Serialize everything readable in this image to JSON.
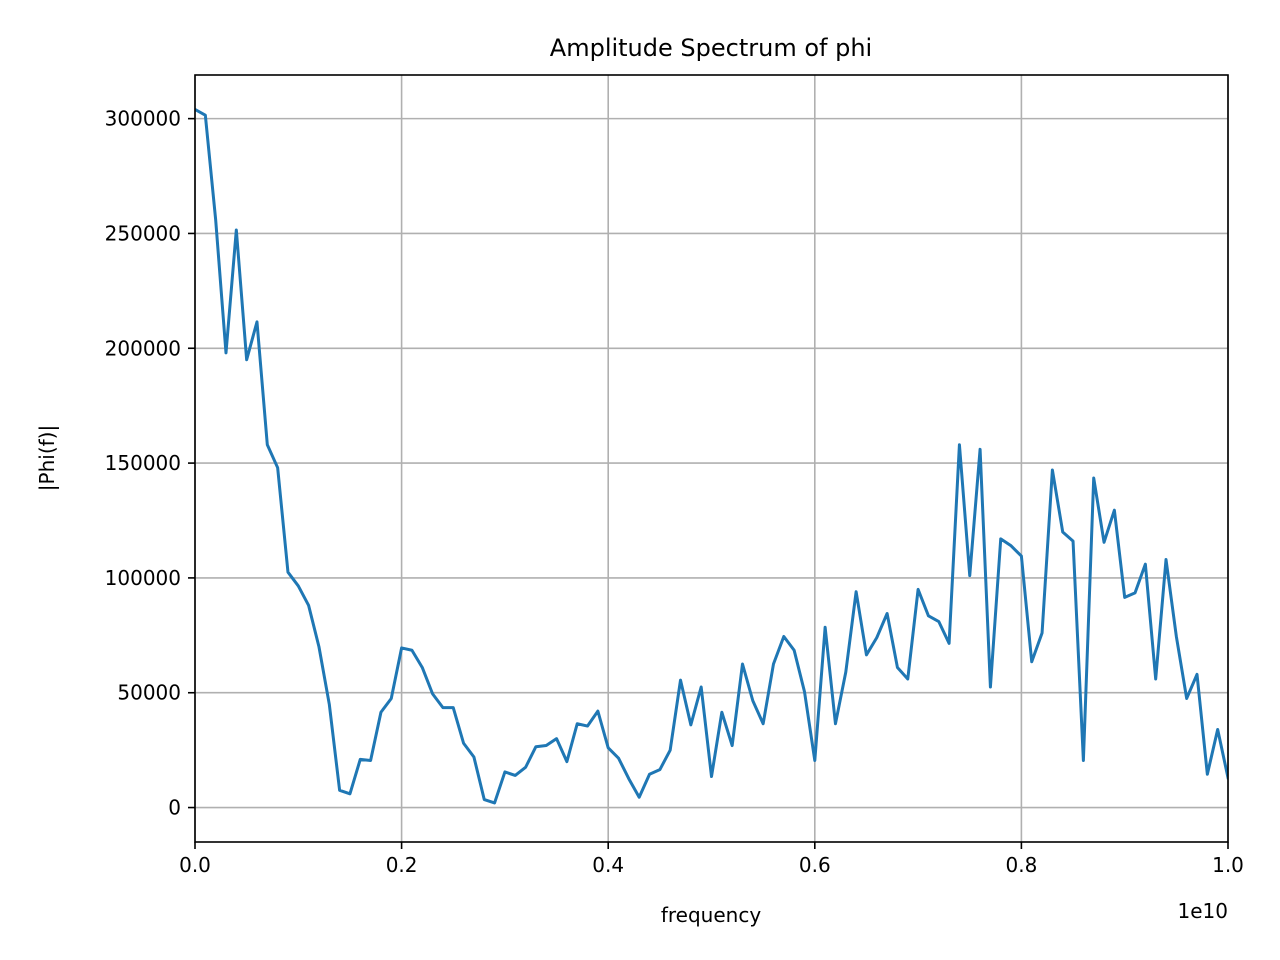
{
  "chart_data": {
    "type": "line",
    "title": "Amplitude Spectrum of phi",
    "xlabel": "frequency",
    "ylabel": "|Phi(f)|",
    "x_offset_text": "1e10",
    "xlim": [
      0.0,
      1.0
    ],
    "ylim": [
      -15000,
      319000
    ],
    "grid": true,
    "x_ticks": [
      0.0,
      0.2,
      0.4,
      0.6,
      0.8,
      1.0
    ],
    "x_tick_labels": [
      "0.0",
      "0.2",
      "0.4",
      "0.6",
      "0.8",
      "1.0"
    ],
    "y_ticks": [
      0,
      50000,
      100000,
      150000,
      200000,
      250000,
      300000
    ],
    "y_tick_labels": [
      "0",
      "50000",
      "100000",
      "150000",
      "200000",
      "250000",
      "300000"
    ],
    "series": [
      {
        "color": "#1f77b4",
        "x": [
          0.0,
          0.01,
          0.02,
          0.03,
          0.04,
          0.05,
          0.06,
          0.07,
          0.08,
          0.09,
          0.1,
          0.11,
          0.12,
          0.13,
          0.14,
          0.15,
          0.16,
          0.17,
          0.18,
          0.19,
          0.2,
          0.21,
          0.22,
          0.23,
          0.24,
          0.25,
          0.26,
          0.27,
          0.28,
          0.29,
          0.3,
          0.31,
          0.32,
          0.33,
          0.34,
          0.35,
          0.36,
          0.37,
          0.38,
          0.39,
          0.4,
          0.41,
          0.42,
          0.43,
          0.44,
          0.45,
          0.46,
          0.47,
          0.48,
          0.49,
          0.5,
          0.51,
          0.52,
          0.53,
          0.54,
          0.55,
          0.56,
          0.57,
          0.58,
          0.59,
          0.6,
          0.61,
          0.62,
          0.63,
          0.64,
          0.65,
          0.66,
          0.67,
          0.68,
          0.69,
          0.7,
          0.71,
          0.72,
          0.73,
          0.74,
          0.75,
          0.76,
          0.77,
          0.78,
          0.79,
          0.8,
          0.81,
          0.82,
          0.83,
          0.84,
          0.85,
          0.86,
          0.87,
          0.88,
          0.89,
          0.9,
          0.91,
          0.92,
          0.93,
          0.94,
          0.95,
          0.96,
          0.97,
          0.98,
          0.99,
          1.0
        ],
        "y": [
          304000,
          301500,
          256000,
          198000,
          251500,
          195000,
          211500,
          158000,
          148000,
          102500,
          96500,
          88000,
          70000,
          45000,
          7500,
          6000,
          21000,
          20500,
          41500,
          47500,
          69500,
          68500,
          61000,
          49500,
          43500,
          43500,
          28000,
          22000,
          3500,
          2000,
          15500,
          14000,
          17500,
          26500,
          27000,
          30000,
          20000,
          36500,
          35500,
          42000,
          26000,
          21500,
          12500,
          4500,
          14500,
          16500,
          25000,
          55500,
          36000,
          52500,
          13500,
          41500,
          27000,
          62500,
          46500,
          36500,
          62500,
          74500,
          68500,
          50500,
          20500,
          78500,
          36500,
          59000,
          94000,
          66500,
          74000,
          84500,
          61000,
          56000,
          95000,
          83500,
          81000,
          71500,
          158000,
          101000,
          156000,
          52500,
          117000,
          114000,
          109500,
          63500,
          76000,
          147000,
          120000,
          116000,
          20500,
          143500,
          115500,
          129500,
          91500,
          93500,
          106000,
          56000,
          108000,
          74500,
          47500,
          58000,
          14500,
          34000,
          13000
        ]
      }
    ]
  }
}
